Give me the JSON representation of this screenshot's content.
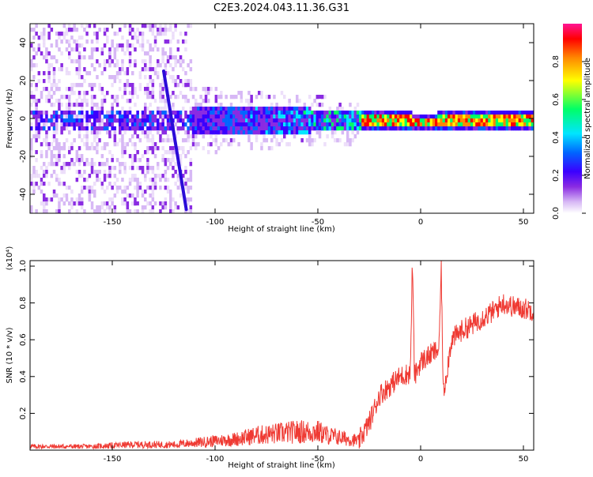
{
  "title": "C2E3.2024.043.11.36.G31",
  "chart_data": [
    {
      "type": "heatmap",
      "xlabel": "Height of straight line (km)",
      "ylabel": "Frequency (Hz)",
      "xlim": [
        -190,
        55
      ],
      "ylim": [
        -50,
        50
      ],
      "xticks": [
        -150,
        -100,
        -50,
        0,
        50
      ],
      "yticks": [
        -40,
        -20,
        0,
        20,
        40
      ],
      "colorbar": {
        "label": "Normalized spectral amplitude",
        "range": [
          0,
          1
        ],
        "ticks": [
          0.0,
          0.2,
          0.4,
          0.6,
          0.8
        ],
        "colormap": [
          "#ffffff",
          "#d7b8f5",
          "#8a2be2",
          "#3a00ff",
          "#0066ff",
          "#00e5ff",
          "#00ff66",
          "#ffff00",
          "#ff8800",
          "#ff0000",
          "#ff1493"
        ]
      },
      "features": {
        "signal_band_center_hz": 0,
        "steep_streak": {
          "x": [
            -125,
            -114
          ],
          "y": [
            25,
            -48
          ]
        }
      }
    },
    {
      "type": "line",
      "xlabel": "Height of straight line (km)",
      "ylabel": "SNR (10 * v/v)",
      "yscale_label": "(x10⁴)",
      "xlim": [
        -190,
        55
      ],
      "ylim": [
        0,
        1.03
      ],
      "xticks": [
        -150,
        -100,
        -50,
        0,
        50
      ],
      "yticks": [
        0.2,
        0.4,
        0.6,
        0.8,
        1.0
      ],
      "color": "#ef3a33",
      "series": [
        {
          "x": [
            -190,
            -160,
            -140,
            -120,
            -100,
            -90,
            -80,
            -70,
            -60,
            -50,
            -45,
            -40,
            -35,
            -30,
            -25,
            -20,
            -15,
            -10,
            -5,
            -4,
            -3,
            0,
            5,
            9,
            10,
            11,
            15,
            20,
            25,
            30,
            35,
            40,
            45,
            50,
            55
          ],
          "values": [
            0.02,
            0.02,
            0.03,
            0.03,
            0.05,
            0.06,
            0.08,
            0.09,
            0.1,
            0.1,
            0.08,
            0.07,
            0.06,
            0.05,
            0.15,
            0.3,
            0.35,
            0.4,
            0.42,
            1.03,
            0.4,
            0.48,
            0.52,
            0.55,
            1.02,
            0.3,
            0.6,
            0.65,
            0.68,
            0.72,
            0.75,
            0.8,
            0.78,
            0.77,
            0.76
          ]
        }
      ]
    }
  ]
}
